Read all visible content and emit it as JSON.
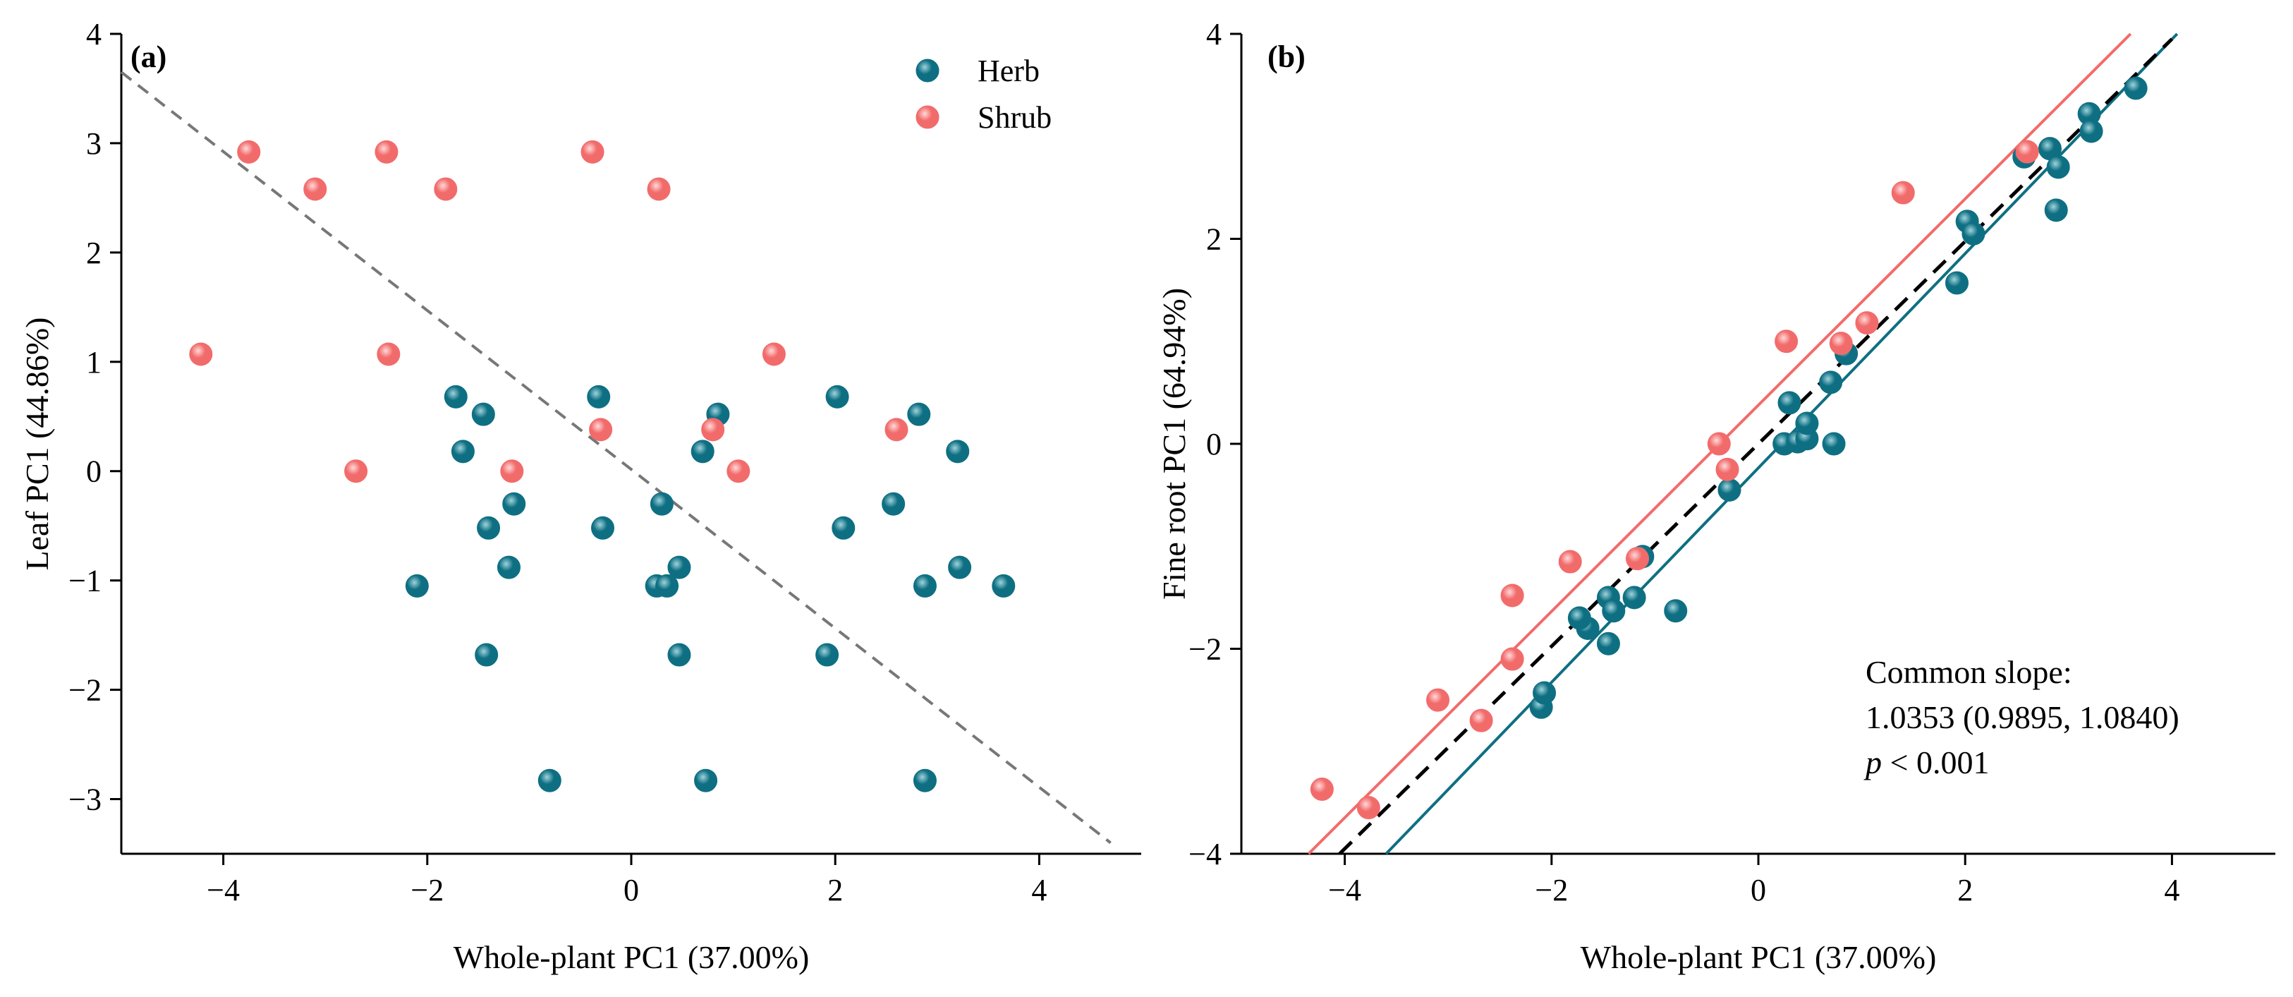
{
  "colors": {
    "herb": "#0e6f82",
    "herb_highlight": "#9fd3dc",
    "shrub": "#f26b6b",
    "shrub_highlight": "#ffd9d9",
    "axis": "#000000",
    "diag": "#777777",
    "common_fit": "#000000"
  },
  "chart_data": [
    {
      "type": "scatter",
      "panel_label": "(a)",
      "xlabel": "Whole-plant PC1 (37.00%)",
      "ylabel": "Leaf PC1 (44.86%)",
      "xlim": [
        -5,
        5
      ],
      "ylim": [
        -3.5,
        4
      ],
      "xticks": [
        -4,
        -2,
        0,
        2,
        4
      ],
      "yticks": [
        -3,
        -2,
        -1,
        0,
        1,
        2,
        3,
        4
      ],
      "legend": {
        "placement": "top-right",
        "entries": [
          {
            "name": "Herb",
            "color_key": "herb"
          },
          {
            "name": "Shrub",
            "color_key": "shrub"
          }
        ]
      },
      "reference_line": {
        "style": "dashed",
        "points": [
          [
            -5,
            3.65
          ],
          [
            4.7,
            -3.4
          ]
        ]
      },
      "series": [
        {
          "name": "Herb",
          "color_key": "herb",
          "points": [
            [
              -1.72,
              0.68
            ],
            [
              -1.45,
              0.52
            ],
            [
              -1.65,
              0.18
            ],
            [
              -1.4,
              -0.52
            ],
            [
              -1.15,
              -0.3
            ],
            [
              -1.2,
              -0.88
            ],
            [
              -2.1,
              -1.05
            ],
            [
              -1.42,
              -1.68
            ],
            [
              -0.8,
              -2.83
            ],
            [
              -0.32,
              0.68
            ],
            [
              -0.28,
              -0.52
            ],
            [
              0.3,
              -0.3
            ],
            [
              0.25,
              -1.05
            ],
            [
              0.35,
              -1.05
            ],
            [
              0.47,
              -0.88
            ],
            [
              0.47,
              -1.68
            ],
            [
              0.7,
              0.18
            ],
            [
              0.85,
              0.52
            ],
            [
              0.73,
              -2.83
            ],
            [
              2.02,
              0.68
            ],
            [
              2.08,
              -0.52
            ],
            [
              1.92,
              -1.68
            ],
            [
              2.57,
              -0.3
            ],
            [
              2.82,
              0.52
            ],
            [
              2.88,
              -1.05
            ],
            [
              3.2,
              0.18
            ],
            [
              3.22,
              -0.88
            ],
            [
              3.65,
              -1.05
            ],
            [
              2.88,
              -2.83
            ]
          ]
        },
        {
          "name": "Shrub",
          "color_key": "shrub",
          "points": [
            [
              -3.75,
              2.92
            ],
            [
              -2.4,
              2.92
            ],
            [
              -0.38,
              2.92
            ],
            [
              -3.1,
              2.58
            ],
            [
              -1.82,
              2.58
            ],
            [
              0.27,
              2.58
            ],
            [
              -4.22,
              1.07
            ],
            [
              -2.38,
              1.07
            ],
            [
              1.4,
              1.07
            ],
            [
              -0.3,
              0.38
            ],
            [
              0.8,
              0.38
            ],
            [
              2.6,
              0.38
            ],
            [
              -2.7,
              0.0
            ],
            [
              -1.17,
              0.0
            ],
            [
              1.05,
              0.0
            ]
          ]
        }
      ]
    },
    {
      "type": "scatter",
      "panel_label": "(b)",
      "xlabel": "Whole-plant PC1 (37.00%)",
      "ylabel": "Fine root PC1 (64.94%)",
      "xlim": [
        -5,
        5
      ],
      "ylim": [
        -4,
        4
      ],
      "xticks": [
        -4,
        -2,
        0,
        2,
        4
      ],
      "yticks": [
        -4,
        -2,
        0,
        2,
        4
      ],
      "fit_lines": [
        {
          "name": "Shrub",
          "color_key": "shrub",
          "style": "solid",
          "points": [
            [
              -4.35,
              -4.0
            ],
            [
              3.6,
              4.0
            ]
          ]
        },
        {
          "name": "Herb",
          "color_key": "herb",
          "style": "solid",
          "points": [
            [
              -3.6,
              -4.0
            ],
            [
              4.05,
              4.0
            ]
          ]
        },
        {
          "name": "Common",
          "color_key": "common_fit",
          "style": "dashed",
          "points": [
            [
              -4.05,
              -4.0
            ],
            [
              4.0,
              3.95
            ]
          ]
        }
      ],
      "annotation": {
        "title": "Common slope:",
        "value": "1.0353 (0.9895, 1.0840)",
        "p_symbol": "p",
        "p_text": " < 0.001"
      },
      "series": [
        {
          "name": "Herb",
          "color_key": "herb",
          "points": [
            [
              -2.1,
              -2.57
            ],
            [
              -2.07,
              -2.43
            ],
            [
              -1.65,
              -1.8
            ],
            [
              -1.73,
              -1.7
            ],
            [
              -1.45,
              -1.5
            ],
            [
              -1.4,
              -1.63
            ],
            [
              -1.45,
              -1.95
            ],
            [
              -1.2,
              -1.5
            ],
            [
              -1.12,
              -1.1
            ],
            [
              -0.8,
              -1.63
            ],
            [
              -0.28,
              -0.45
            ],
            [
              0.25,
              0.0
            ],
            [
              0.3,
              0.4
            ],
            [
              0.38,
              0.02
            ],
            [
              0.47,
              0.05
            ],
            [
              0.47,
              0.2
            ],
            [
              0.7,
              0.6
            ],
            [
              0.73,
              0.0
            ],
            [
              0.85,
              0.88
            ],
            [
              1.92,
              1.57
            ],
            [
              2.02,
              2.17
            ],
            [
              2.08,
              2.05
            ],
            [
              2.57,
              2.8
            ],
            [
              2.82,
              2.88
            ],
            [
              2.88,
              2.28
            ],
            [
              2.9,
              2.7
            ],
            [
              3.2,
              3.22
            ],
            [
              3.22,
              3.05
            ],
            [
              3.65,
              3.47
            ]
          ]
        },
        {
          "name": "Shrub",
          "color_key": "shrub",
          "points": [
            [
              -4.22,
              -3.37
            ],
            [
              -3.77,
              -3.55
            ],
            [
              -3.1,
              -2.5
            ],
            [
              -2.68,
              -2.7
            ],
            [
              -2.38,
              -1.48
            ],
            [
              -2.38,
              -2.1
            ],
            [
              -1.82,
              -1.15
            ],
            [
              -1.17,
              -1.12
            ],
            [
              -0.38,
              0.0
            ],
            [
              -0.3,
              -0.25
            ],
            [
              0.27,
              1.0
            ],
            [
              0.8,
              0.98
            ],
            [
              1.05,
              1.18
            ],
            [
              1.4,
              2.45
            ],
            [
              2.6,
              2.85
            ]
          ]
        }
      ]
    }
  ]
}
